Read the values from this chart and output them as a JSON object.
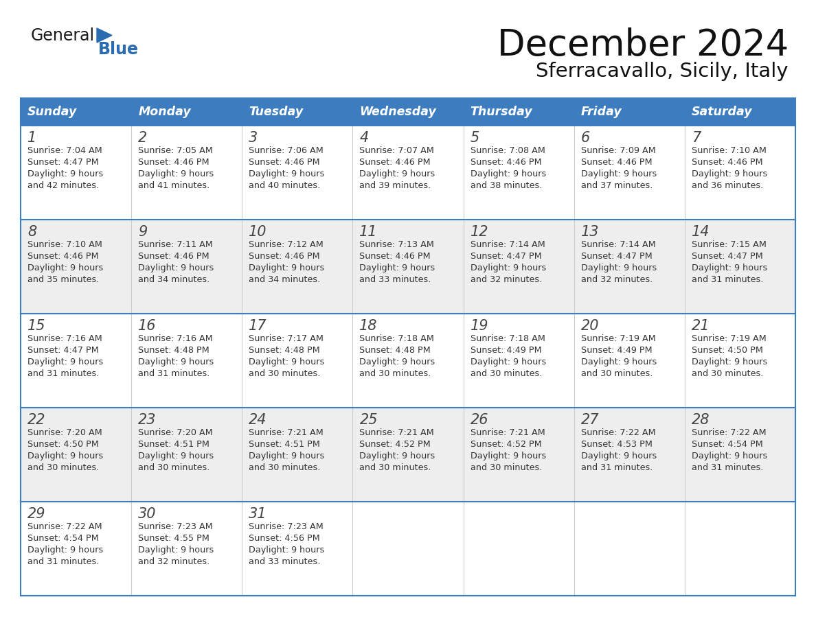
{
  "title": "December 2024",
  "subtitle": "Sferracavallo, Sicily, Italy",
  "header_color": "#3D7DBF",
  "header_text_color": "#FFFFFF",
  "row_bg_odd": "#EEEEEE",
  "row_bg_even": "#FFFFFF",
  "day_number_color": "#444444",
  "text_color": "#333333",
  "border_color": "#3D7DBF",
  "week_separator_color": "#3D7DBF",
  "col_separator_color": "#CCCCCC",
  "weekdays": [
    "Sunday",
    "Monday",
    "Tuesday",
    "Wednesday",
    "Thursday",
    "Friday",
    "Saturday"
  ],
  "weeks": [
    [
      {
        "day": 1,
        "sunrise": "7:04 AM",
        "sunset": "4:47 PM",
        "daylight": "9 hours and 42 minutes."
      },
      {
        "day": 2,
        "sunrise": "7:05 AM",
        "sunset": "4:46 PM",
        "daylight": "9 hours and 41 minutes."
      },
      {
        "day": 3,
        "sunrise": "7:06 AM",
        "sunset": "4:46 PM",
        "daylight": "9 hours and 40 minutes."
      },
      {
        "day": 4,
        "sunrise": "7:07 AM",
        "sunset": "4:46 PM",
        "daylight": "9 hours and 39 minutes."
      },
      {
        "day": 5,
        "sunrise": "7:08 AM",
        "sunset": "4:46 PM",
        "daylight": "9 hours and 38 minutes."
      },
      {
        "day": 6,
        "sunrise": "7:09 AM",
        "sunset": "4:46 PM",
        "daylight": "9 hours and 37 minutes."
      },
      {
        "day": 7,
        "sunrise": "7:10 AM",
        "sunset": "4:46 PM",
        "daylight": "9 hours and 36 minutes."
      }
    ],
    [
      {
        "day": 8,
        "sunrise": "7:10 AM",
        "sunset": "4:46 PM",
        "daylight": "9 hours and 35 minutes."
      },
      {
        "day": 9,
        "sunrise": "7:11 AM",
        "sunset": "4:46 PM",
        "daylight": "9 hours and 34 minutes."
      },
      {
        "day": 10,
        "sunrise": "7:12 AM",
        "sunset": "4:46 PM",
        "daylight": "9 hours and 34 minutes."
      },
      {
        "day": 11,
        "sunrise": "7:13 AM",
        "sunset": "4:46 PM",
        "daylight": "9 hours and 33 minutes."
      },
      {
        "day": 12,
        "sunrise": "7:14 AM",
        "sunset": "4:47 PM",
        "daylight": "9 hours and 32 minutes."
      },
      {
        "day": 13,
        "sunrise": "7:14 AM",
        "sunset": "4:47 PM",
        "daylight": "9 hours and 32 minutes."
      },
      {
        "day": 14,
        "sunrise": "7:15 AM",
        "sunset": "4:47 PM",
        "daylight": "9 hours and 31 minutes."
      }
    ],
    [
      {
        "day": 15,
        "sunrise": "7:16 AM",
        "sunset": "4:47 PM",
        "daylight": "9 hours and 31 minutes."
      },
      {
        "day": 16,
        "sunrise": "7:16 AM",
        "sunset": "4:48 PM",
        "daylight": "9 hours and 31 minutes."
      },
      {
        "day": 17,
        "sunrise": "7:17 AM",
        "sunset": "4:48 PM",
        "daylight": "9 hours and 30 minutes."
      },
      {
        "day": 18,
        "sunrise": "7:18 AM",
        "sunset": "4:48 PM",
        "daylight": "9 hours and 30 minutes."
      },
      {
        "day": 19,
        "sunrise": "7:18 AM",
        "sunset": "4:49 PM",
        "daylight": "9 hours and 30 minutes."
      },
      {
        "day": 20,
        "sunrise": "7:19 AM",
        "sunset": "4:49 PM",
        "daylight": "9 hours and 30 minutes."
      },
      {
        "day": 21,
        "sunrise": "7:19 AM",
        "sunset": "4:50 PM",
        "daylight": "9 hours and 30 minutes."
      }
    ],
    [
      {
        "day": 22,
        "sunrise": "7:20 AM",
        "sunset": "4:50 PM",
        "daylight": "9 hours and 30 minutes."
      },
      {
        "day": 23,
        "sunrise": "7:20 AM",
        "sunset": "4:51 PM",
        "daylight": "9 hours and 30 minutes."
      },
      {
        "day": 24,
        "sunrise": "7:21 AM",
        "sunset": "4:51 PM",
        "daylight": "9 hours and 30 minutes."
      },
      {
        "day": 25,
        "sunrise": "7:21 AM",
        "sunset": "4:52 PM",
        "daylight": "9 hours and 30 minutes."
      },
      {
        "day": 26,
        "sunrise": "7:21 AM",
        "sunset": "4:52 PM",
        "daylight": "9 hours and 30 minutes."
      },
      {
        "day": 27,
        "sunrise": "7:22 AM",
        "sunset": "4:53 PM",
        "daylight": "9 hours and 31 minutes."
      },
      {
        "day": 28,
        "sunrise": "7:22 AM",
        "sunset": "4:54 PM",
        "daylight": "9 hours and 31 minutes."
      }
    ],
    [
      {
        "day": 29,
        "sunrise": "7:22 AM",
        "sunset": "4:54 PM",
        "daylight": "9 hours and 31 minutes."
      },
      {
        "day": 30,
        "sunrise": "7:23 AM",
        "sunset": "4:55 PM",
        "daylight": "9 hours and 32 minutes."
      },
      {
        "day": 31,
        "sunrise": "7:23 AM",
        "sunset": "4:56 PM",
        "daylight": "9 hours and 33 minutes."
      },
      null,
      null,
      null,
      null
    ]
  ],
  "logo_triangle_color": "#2B6CB0",
  "logo_blue_color": "#2B6CB0"
}
